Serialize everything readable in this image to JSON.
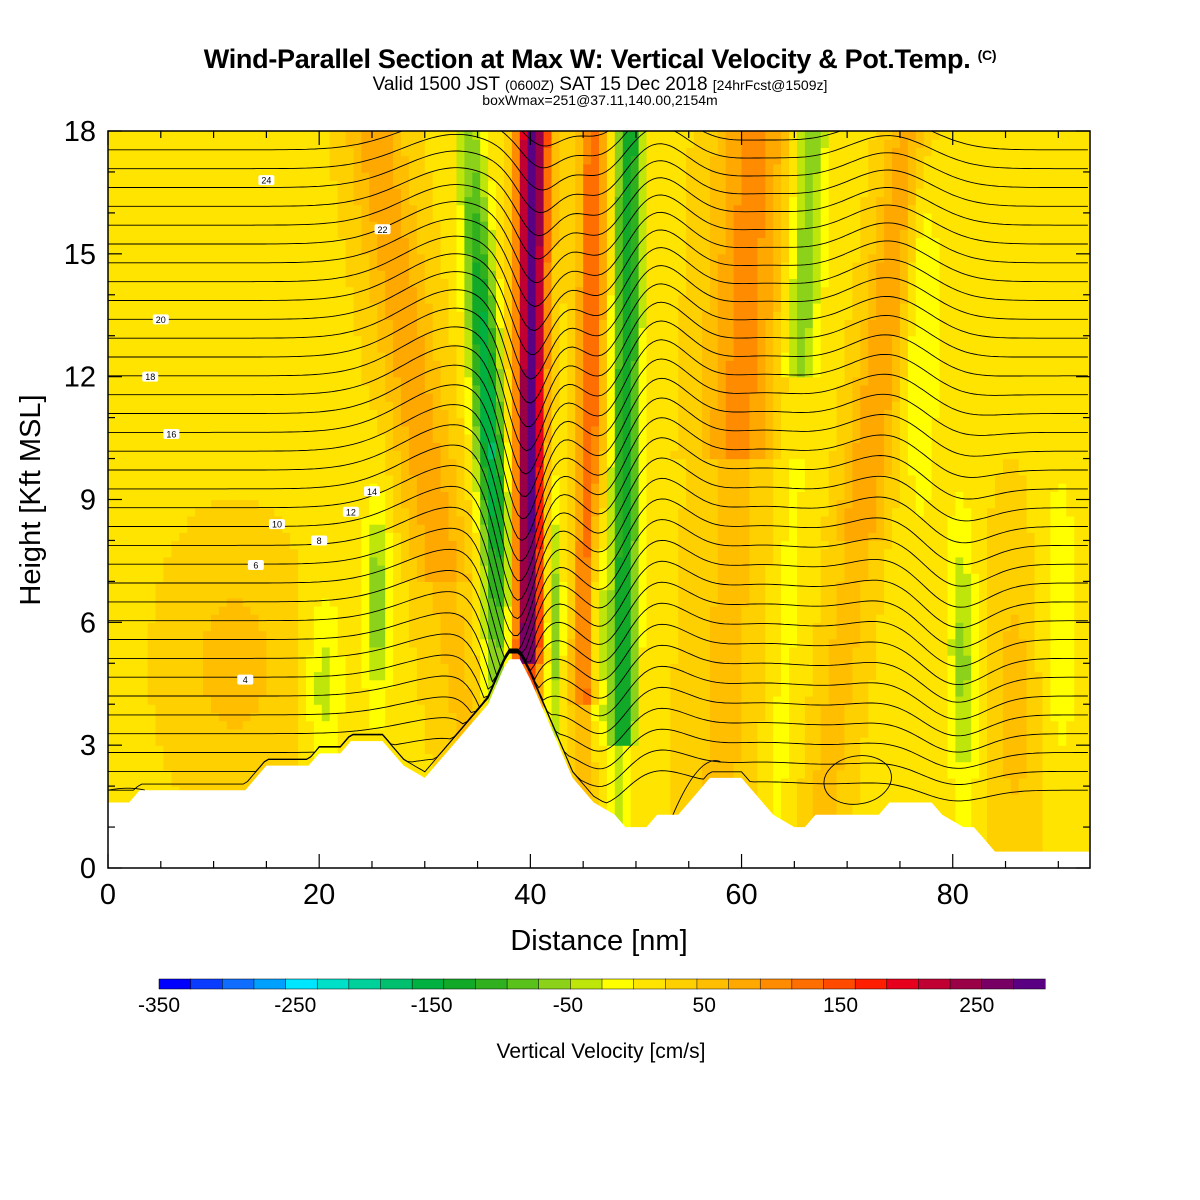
{
  "header": {
    "title_main": "Wind-Parallel Section at Max W: Vertical Velocity & Pot.Temp.",
    "title_copyright": "(C)",
    "valid_prefix": "Valid 1500 JST",
    "valid_utc": "(0600Z)",
    "valid_date": "SAT 15 Dec 2018",
    "forecast": "[24hrFcst@1509z]",
    "box_info": "boxWmax=251@37.11,140.00,2154m"
  },
  "chart_data": {
    "type": "heatmap",
    "xlabel": "Distance [nm]",
    "ylabel": "Height [Kft MSL]",
    "xlim": [
      0,
      93
    ],
    "ylim": [
      0,
      18
    ],
    "x_ticks": [
      0,
      20,
      40,
      60,
      80
    ],
    "y_ticks": [
      0,
      3,
      6,
      9,
      12,
      15,
      18
    ],
    "colorbar": {
      "label": "Vertical Velocity [cm/s]",
      "min": -350,
      "max": 300,
      "step": 25,
      "tick_labels": [
        "-350",
        "-250",
        "-150",
        "-50",
        "50",
        "150",
        "250"
      ],
      "tick_values": [
        -350,
        -250,
        -150,
        -50,
        50,
        150,
        250
      ],
      "colors": [
        "#0000ff",
        "#0a3cff",
        "#0f6eff",
        "#00a0ff",
        "#00e6ff",
        "#00e0c8",
        "#00d09a",
        "#00c070",
        "#00b040",
        "#12a828",
        "#30b01e",
        "#5ac01a",
        "#8cd21a",
        "#bee60a",
        "#ffff00",
        "#ffe400",
        "#ffd000",
        "#ffbe00",
        "#ffa800",
        "#ff8c00",
        "#ff6e00",
        "#ff4a00",
        "#ff1e00",
        "#e6001e",
        "#c00032",
        "#9a0046",
        "#780064",
        "#5a0082"
      ]
    },
    "terrain_kft": [
      [
        0,
        1.6
      ],
      [
        2,
        1.6
      ],
      [
        3,
        1.9
      ],
      [
        13,
        1.9
      ],
      [
        14,
        2.2
      ],
      [
        15,
        2.5
      ],
      [
        19,
        2.5
      ],
      [
        20,
        2.8
      ],
      [
        22,
        2.8
      ],
      [
        23,
        3.1
      ],
      [
        26,
        3.1
      ],
      [
        27,
        2.8
      ],
      [
        28,
        2.5
      ],
      [
        30,
        2.2
      ],
      [
        31,
        2.5
      ],
      [
        32,
        2.8
      ],
      [
        33,
        3.1
      ],
      [
        34,
        3.4
      ],
      [
        35,
        3.7
      ],
      [
        36,
        4.0
      ],
      [
        36.5,
        4.3
      ],
      [
        37,
        4.6
      ],
      [
        37.5,
        4.9
      ],
      [
        38,
        5.1
      ],
      [
        39,
        5.1
      ],
      [
        40,
        4.6
      ],
      [
        41,
        4.0
      ],
      [
        42,
        3.4
      ],
      [
        43,
        2.8
      ],
      [
        44,
        2.2
      ],
      [
        45,
        1.9
      ],
      [
        46,
        1.6
      ],
      [
        48,
        1.3
      ],
      [
        49,
        1.0
      ],
      [
        51,
        1.0
      ],
      [
        52,
        1.3
      ],
      [
        54,
        1.3
      ],
      [
        55,
        1.6
      ],
      [
        56,
        1.9
      ],
      [
        57,
        2.2
      ],
      [
        60,
        2.2
      ],
      [
        61,
        1.9
      ],
      [
        62,
        1.6
      ],
      [
        63,
        1.3
      ],
      [
        65,
        1.0
      ],
      [
        66,
        1.0
      ],
      [
        67,
        1.3
      ],
      [
        73,
        1.3
      ],
      [
        74,
        1.6
      ],
      [
        78,
        1.6
      ],
      [
        79,
        1.3
      ],
      [
        81,
        1.0
      ],
      [
        82,
        1.0
      ],
      [
        83,
        0.7
      ],
      [
        84,
        0.4
      ],
      [
        93,
        0.4
      ]
    ],
    "theta_contours": [
      {
        "label": "4",
        "label_x": 13,
        "label_y": 4.6
      },
      {
        "label": "6",
        "label_x": 14,
        "label_y": 7.4
      },
      {
        "label": "8",
        "label_x": 20,
        "label_y": 8.0
      },
      {
        "label": "10",
        "label_x": 16,
        "label_y": 8.4
      },
      {
        "label": "12",
        "label_x": 23,
        "label_y": 8.7
      },
      {
        "label": "14",
        "label_x": 25,
        "label_y": 9.2
      },
      {
        "label": "16",
        "label_x": 6,
        "label_y": 10.6
      },
      {
        "label": "18",
        "label_x": 4,
        "label_y": 12.0
      },
      {
        "label": "20",
        "label_x": 5,
        "label_y": 13.4
      },
      {
        "label": "22",
        "label_x": 26,
        "label_y": 15.6
      },
      {
        "label": "24",
        "label_x": 15,
        "label_y": 16.8
      }
    ]
  }
}
